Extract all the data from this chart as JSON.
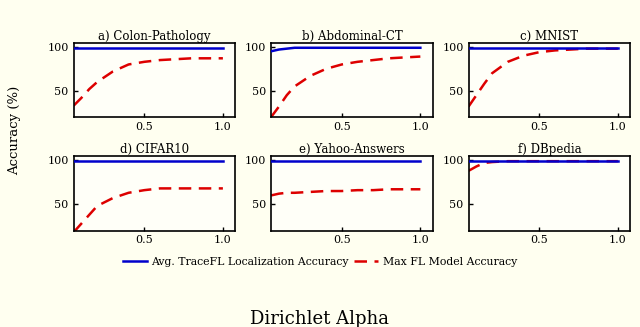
{
  "subplots": [
    {
      "title": "a) Colon-Pathology",
      "blue_x": [
        0.05,
        0.1,
        0.2,
        0.3,
        0.5,
        0.7,
        1.0
      ],
      "blue_y": [
        99,
        99,
        99,
        99,
        99,
        99,
        99
      ],
      "red_x": [
        0.05,
        0.1,
        0.15,
        0.2,
        0.3,
        0.4,
        0.5,
        0.6,
        0.7,
        0.8,
        0.9,
        1.0
      ],
      "red_y": [
        33,
        42,
        52,
        60,
        72,
        80,
        83,
        85,
        86,
        87,
        87,
        87
      ]
    },
    {
      "title": "b) Abdominal-CT",
      "blue_x": [
        0.05,
        0.1,
        0.2,
        0.3,
        0.5,
        0.7,
        1.0
      ],
      "blue_y": [
        95,
        97,
        99,
        99,
        99,
        99,
        99
      ],
      "red_x": [
        0.05,
        0.1,
        0.15,
        0.2,
        0.3,
        0.4,
        0.5,
        0.6,
        0.7,
        0.8,
        0.9,
        1.0
      ],
      "red_y": [
        20,
        32,
        45,
        55,
        67,
        75,
        80,
        83,
        85,
        87,
        88,
        89
      ]
    },
    {
      "title": "c) MNIST",
      "blue_x": [
        0.05,
        0.1,
        0.2,
        0.3,
        0.5,
        0.7,
        1.0
      ],
      "blue_y": [
        99,
        99,
        99,
        99,
        99,
        99,
        99
      ],
      "red_x": [
        0.05,
        0.1,
        0.15,
        0.2,
        0.3,
        0.4,
        0.5,
        0.6,
        0.7,
        0.8,
        0.9,
        1.0
      ],
      "red_y": [
        32,
        45,
        58,
        70,
        83,
        90,
        94,
        96,
        97,
        98,
        98,
        98
      ]
    },
    {
      "title": "d) CIFAR10",
      "blue_x": [
        0.05,
        0.1,
        0.2,
        0.3,
        0.5,
        0.7,
        1.0
      ],
      "blue_y": [
        99,
        99,
        99,
        99,
        99,
        99,
        99
      ],
      "red_x": [
        0.05,
        0.1,
        0.15,
        0.2,
        0.3,
        0.4,
        0.5,
        0.6,
        0.7,
        0.8,
        0.9,
        1.0
      ],
      "red_y": [
        18,
        28,
        38,
        48,
        57,
        63,
        66,
        68,
        68,
        68,
        68,
        68
      ]
    },
    {
      "title": "e) Yahoo-Answers",
      "blue_x": [
        0.05,
        0.1,
        0.2,
        0.3,
        0.5,
        0.7,
        1.0
      ],
      "blue_y": [
        99,
        99,
        99,
        99,
        99,
        99,
        99
      ],
      "red_x": [
        0.05,
        0.1,
        0.15,
        0.2,
        0.3,
        0.4,
        0.5,
        0.6,
        0.7,
        0.8,
        0.9,
        1.0
      ],
      "red_y": [
        60,
        62,
        63,
        63,
        64,
        65,
        65,
        66,
        66,
        67,
        67,
        67
      ]
    },
    {
      "title": "f) DBpedia",
      "blue_x": [
        0.05,
        0.1,
        0.2,
        0.3,
        0.5,
        0.7,
        1.0
      ],
      "blue_y": [
        99,
        99,
        99,
        99,
        99,
        99,
        99
      ],
      "red_x": [
        0.05,
        0.1,
        0.15,
        0.2,
        0.3,
        0.4,
        0.5,
        0.6,
        0.7,
        0.8,
        0.9,
        1.0
      ],
      "red_y": [
        88,
        93,
        97,
        98,
        99,
        99,
        99,
        99,
        99,
        99,
        99,
        99
      ]
    }
  ],
  "blue_color": "#0000cc",
  "red_color": "#dd0000",
  "blue_lw": 1.8,
  "red_lw": 1.8,
  "ylabel": "Accuracy (%)",
  "xlabel": "Dirichlet Alpha",
  "legend_blue": "Avg. TraceFL Localization Accuracy",
  "legend_red": "Max FL Model Accuracy",
  "ylim": [
    20,
    105
  ],
  "yticks": [
    50,
    100
  ],
  "xticks": [
    0.5,
    1.0
  ],
  "xlim": [
    0.05,
    1.08
  ],
  "bg_color": "#fffff0",
  "face_color": "#fffff8"
}
